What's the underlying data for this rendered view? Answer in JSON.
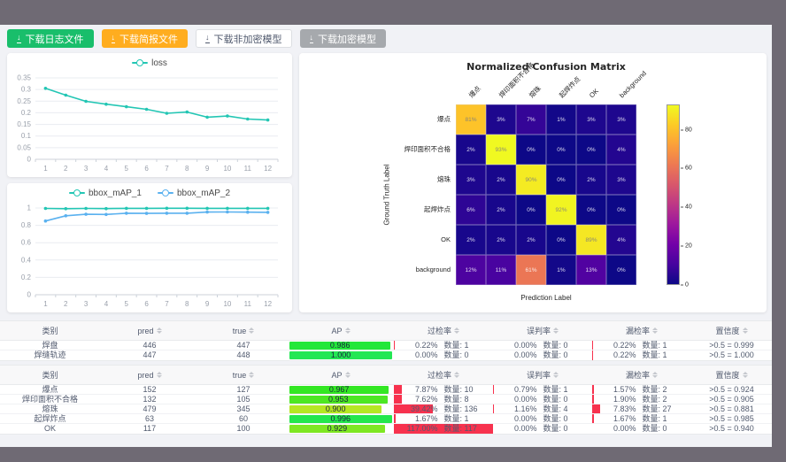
{
  "window": {
    "frame_color": "#6f6a74",
    "page_bg": "#f1f2f6"
  },
  "toolbar": {
    "buttons": [
      {
        "name": "download-log-file-button",
        "label": "下载日志文件",
        "type": "success",
        "bg": "#19be6b",
        "fg": "#ffffff",
        "disabled": false
      },
      {
        "name": "download-report-file-button",
        "label": "下载简报文件",
        "type": "warning",
        "bg": "#ffad1f",
        "fg": "#ffffff",
        "disabled": false
      },
      {
        "name": "download-unencrypted-model-button",
        "label": "下载非加密模型",
        "type": "default",
        "bg": "#ffffff",
        "fg": "#515a6e",
        "disabled": false
      },
      {
        "name": "download-encrypted-model-button",
        "label": "下载加密模型",
        "type": "disabled",
        "bg": "#a6a9ad",
        "fg": "#ffffff",
        "disabled": true
      }
    ]
  },
  "chart_data": [
    {
      "type": "line",
      "title": "loss",
      "x": [
        1,
        2,
        3,
        4,
        5,
        6,
        7,
        8,
        9,
        10,
        11,
        12
      ],
      "series": [
        {
          "name": "loss",
          "color": "#23c6b4",
          "values": [
            0.305,
            0.276,
            0.249,
            0.237,
            0.226,
            0.215,
            0.198,
            0.203,
            0.181,
            0.186,
            0.173,
            0.169
          ]
        }
      ],
      "ylim": [
        0,
        0.35
      ],
      "yticks": [
        0,
        0.05,
        0.1,
        0.15,
        0.2,
        0.25,
        0.3,
        0.35
      ],
      "legend_position": "top",
      "grid": true
    },
    {
      "type": "line",
      "title": "bbox_mAP",
      "x": [
        1,
        2,
        3,
        4,
        5,
        6,
        7,
        8,
        9,
        10,
        11,
        12
      ],
      "series": [
        {
          "name": "bbox_mAP_1",
          "color": "#23c6b4",
          "values": [
            0.995,
            0.992,
            0.995,
            0.993,
            0.996,
            0.996,
            0.997,
            0.997,
            0.996,
            0.996,
            0.996,
            0.996
          ]
        },
        {
          "name": "bbox_mAP_2",
          "color": "#5ab1ef",
          "values": [
            0.85,
            0.91,
            0.928,
            0.925,
            0.94,
            0.938,
            0.94,
            0.94,
            0.953,
            0.954,
            0.952,
            0.95
          ]
        }
      ],
      "ylim": [
        0,
        1
      ],
      "yticks": [
        0,
        0.2,
        0.4,
        0.6,
        0.8,
        1
      ],
      "legend_position": "top",
      "grid": true
    },
    {
      "type": "heatmap",
      "title": "Normalized Confusion Matrix",
      "xlabel": "Prediction Label",
      "ylabel": "Ground Truth Label",
      "labels": [
        "爆点",
        "焊印面积不合格",
        "熔珠",
        "起焊炸点",
        "OK",
        "background"
      ],
      "matrix": [
        [
          81,
          3,
          7,
          1,
          3,
          3
        ],
        [
          2,
          93,
          0,
          0,
          0,
          4
        ],
        [
          3,
          2,
          90,
          0,
          2,
          3
        ],
        [
          6,
          2,
          0,
          92,
          0,
          0
        ],
        [
          2,
          2,
          2,
          0,
          89,
          4
        ],
        [
          12,
          11,
          61,
          1,
          13,
          0
        ]
      ],
      "unit": "%",
      "vmax": 93,
      "colormap": "plasma",
      "colorbar_ticks": [
        0,
        20,
        40,
        60,
        80
      ]
    }
  ],
  "tables": [
    {
      "count_prefix": "数量:",
      "headers": [
        {
          "label": "类别",
          "sortable": false
        },
        {
          "label": "pred",
          "sortable": true
        },
        {
          "label": "true",
          "sortable": true
        },
        {
          "label": "AP",
          "sortable": true
        },
        {
          "label": "过检率",
          "sortable": true
        },
        {
          "label": "误判率",
          "sortable": true
        },
        {
          "label": "漏检率",
          "sortable": true
        },
        {
          "label": "置信度",
          "sortable": true
        }
      ],
      "rows": [
        {
          "cls": "焊盘",
          "pred": "446",
          "true": "447",
          "ap": 0.986,
          "ap_label": "0.986",
          "rates": [
            {
              "pct": "0.22%",
              "value": 0.22,
              "count": "1"
            },
            {
              "pct": "0.00%",
              "value": 0,
              "count": "0"
            },
            {
              "pct": "0.22%",
              "value": 0.22,
              "count": "1"
            }
          ],
          "conf": ">0.5 = 0.999"
        },
        {
          "cls": "焊缝轨迹",
          "pred": "447",
          "true": "448",
          "ap": 1.0,
          "ap_label": "1.000",
          "rates": [
            {
              "pct": "0.00%",
              "value": 0,
              "count": "0"
            },
            {
              "pct": "0.00%",
              "value": 0,
              "count": "0"
            },
            {
              "pct": "0.22%",
              "value": 0.22,
              "count": "1"
            }
          ],
          "conf": ">0.5 = 1.000"
        }
      ]
    },
    {
      "count_prefix": "数量:",
      "headers": [
        {
          "label": "类别",
          "sortable": false
        },
        {
          "label": "pred",
          "sortable": true
        },
        {
          "label": "true",
          "sortable": true
        },
        {
          "label": "AP",
          "sortable": true
        },
        {
          "label": "过检率",
          "sortable": true
        },
        {
          "label": "误判率",
          "sortable": true
        },
        {
          "label": "漏检率",
          "sortable": true
        },
        {
          "label": "置信度",
          "sortable": true
        }
      ],
      "rows": [
        {
          "cls": "爆点",
          "pred": "152",
          "true": "127",
          "ap": 0.967,
          "ap_label": "0.967",
          "rates": [
            {
              "pct": "7.87%",
              "value": 7.87,
              "count": "10"
            },
            {
              "pct": "0.79%",
              "value": 0.79,
              "count": "1"
            },
            {
              "pct": "1.57%",
              "value": 1.57,
              "count": "2"
            }
          ],
          "conf": ">0.5 = 0.924"
        },
        {
          "cls": "焊印面积不合格",
          "pred": "132",
          "true": "105",
          "ap": 0.953,
          "ap_label": "0.953",
          "rates": [
            {
              "pct": "7.62%",
              "value": 7.62,
              "count": "8"
            },
            {
              "pct": "0.00%",
              "value": 0,
              "count": "0"
            },
            {
              "pct": "1.90%",
              "value": 1.9,
              "count": "2"
            }
          ],
          "conf": ">0.5 = 0.905"
        },
        {
          "cls": "熔珠",
          "pred": "479",
          "true": "345",
          "ap": 0.9,
          "ap_label": "0.900",
          "rates": [
            {
              "pct": "39.42%",
              "value": 39.42,
              "count": "136"
            },
            {
              "pct": "1.16%",
              "value": 1.16,
              "count": "4"
            },
            {
              "pct": "7.83%",
              "value": 7.83,
              "count": "27"
            }
          ],
          "conf": ">0.5 = 0.881"
        },
        {
          "cls": "起焊炸点",
          "pred": "63",
          "true": "60",
          "ap": 0.996,
          "ap_label": "0.996",
          "rates": [
            {
              "pct": "1.67%",
              "value": 1.67,
              "count": "1"
            },
            {
              "pct": "0.00%",
              "value": 0,
              "count": "0"
            },
            {
              "pct": "1.67%",
              "value": 1.67,
              "count": "1"
            }
          ],
          "conf": ">0.5 = 0.985"
        },
        {
          "cls": "OK",
          "pred": "117",
          "true": "100",
          "ap": 0.929,
          "ap_label": "0.929",
          "rates": [
            {
              "pct": "117.00%",
              "value": 117,
              "count": "117"
            },
            {
              "pct": "0.00%",
              "value": 0,
              "count": "0"
            },
            {
              "pct": "0.00%",
              "value": 0,
              "count": "0"
            }
          ],
          "conf": ">0.5 = 0.940"
        }
      ]
    }
  ]
}
